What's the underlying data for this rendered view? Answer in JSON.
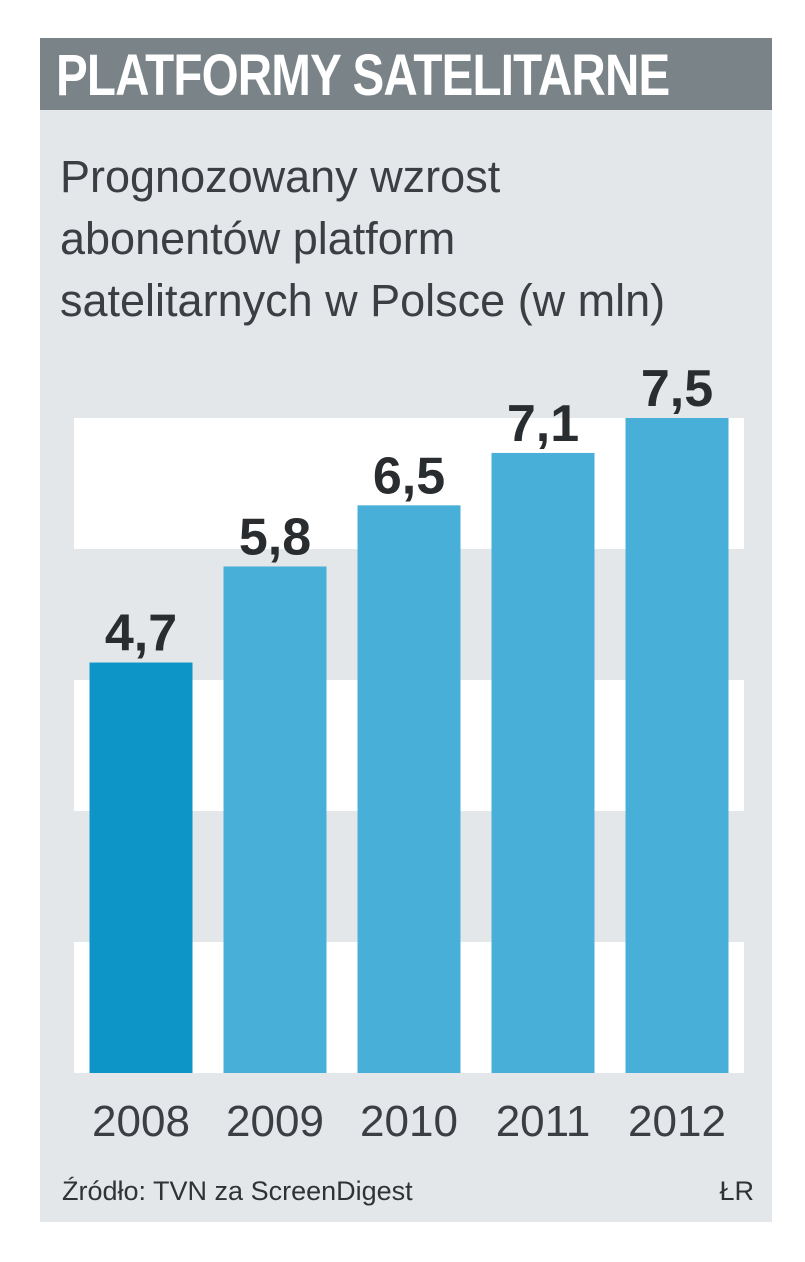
{
  "header": {
    "title": "PLATFORMY SATELITARNE"
  },
  "chart_data": {
    "type": "bar",
    "title": "Prognozowany wzrost abonentów platform satelitarnych w Polsce (w mln)",
    "categories": [
      "2008",
      "2009",
      "2010",
      "2011",
      "2012"
    ],
    "values": [
      4.7,
      5.8,
      6.5,
      7.1,
      7.5
    ],
    "value_labels": [
      "4,7",
      "5,8",
      "6,5",
      "7,1",
      "7,5"
    ],
    "ylim": [
      0,
      7.5
    ],
    "grid": "alternating bands",
    "colors": {
      "bar": "#48b0d8",
      "bar_highlight": "#0d95c7",
      "band_light": "#ffffff",
      "band_dark": "#e3e7ea"
    },
    "xlabel": "",
    "ylabel": ""
  },
  "footer": {
    "source": "Źródło: TVN za ScreenDigest",
    "author": "ŁR"
  }
}
